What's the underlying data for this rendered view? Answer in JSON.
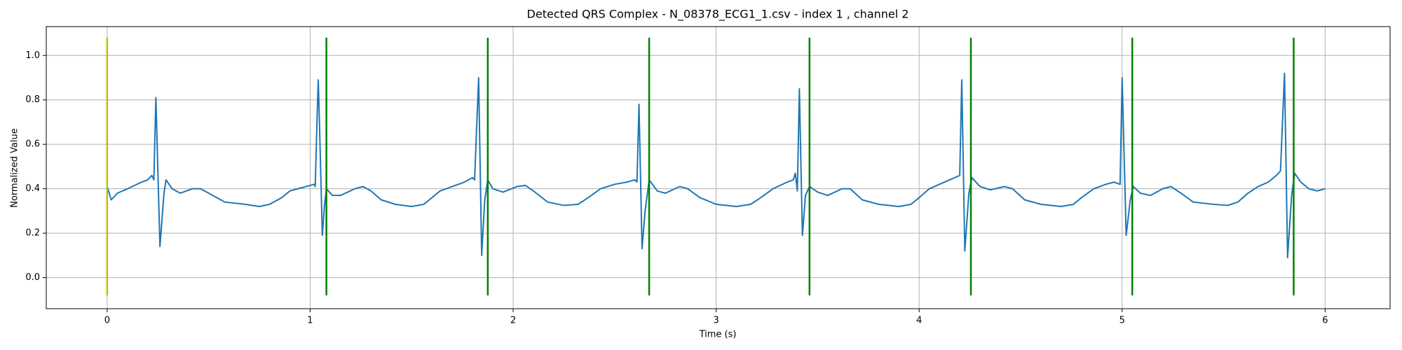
{
  "chart_data": {
    "type": "line",
    "title": "Detected QRS Complex - N_08378_ECG1_1.csv - index 1 , channel 2",
    "xlabel": "Time (s)",
    "ylabel": "Normalized Value",
    "xlim": [
      -0.3,
      6.32
    ],
    "ylim": [
      -0.14,
      1.13
    ],
    "xticks": [
      0,
      1,
      2,
      3,
      4,
      5,
      6
    ],
    "yticks": [
      {
        "value": 0,
        "label": "0.0"
      },
      0.2,
      0.4,
      0.6,
      0.8,
      {
        "value": 1,
        "label": "1.0"
      }
    ],
    "grid": true,
    "series": [
      {
        "color": "#1f77b4",
        "x": [
          0,
          0.02,
          0.05,
          0.1,
          0.17,
          0.2,
          0.22,
          0.23,
          0.24,
          0.26,
          0.28,
          0.29,
          0.32,
          0.36,
          0.42,
          0.46,
          0.52,
          0.58,
          0.68,
          0.75,
          0.8,
          0.86,
          0.9,
          0.94,
          0.98,
          1.02,
          1.025,
          1.035,
          1.04,
          1.05,
          1.06,
          1.07,
          1.08,
          1.11,
          1.15,
          1.22,
          1.26,
          1.3,
          1.35,
          1.42,
          1.5,
          1.56,
          1.6,
          1.64,
          1.7,
          1.76,
          1.8,
          1.81,
          1.83,
          1.845,
          1.86,
          1.875,
          1.9,
          1.95,
          2.02,
          2.06,
          2.1,
          2.17,
          2.25,
          2.32,
          2.37,
          2.43,
          2.5,
          2.56,
          2.6,
          2.61,
          2.62,
          2.635,
          2.65,
          2.67,
          2.71,
          2.75,
          2.82,
          2.86,
          2.92,
          3.0,
          3.1,
          3.17,
          3.22,
          3.28,
          3.35,
          3.38,
          3.39,
          3.4,
          3.41,
          3.425,
          3.44,
          3.46,
          3.5,
          3.55,
          3.62,
          3.66,
          3.72,
          3.8,
          3.9,
          3.96,
          4.0,
          4.05,
          4.1,
          4.15,
          4.2,
          4.21,
          4.225,
          4.245,
          4.26,
          4.3,
          4.35,
          4.42,
          4.46,
          4.52,
          4.6,
          4.7,
          4.76,
          4.8,
          4.86,
          4.92,
          4.96,
          4.99,
          5.0,
          5.02,
          5.04,
          5.055,
          5.09,
          5.14,
          5.2,
          5.24,
          5.29,
          5.35,
          5.45,
          5.52,
          5.57,
          5.62,
          5.67,
          5.72,
          5.76,
          5.78,
          5.8,
          5.815,
          5.835,
          5.85,
          5.88,
          5.92,
          5.96,
          6.0
        ],
        "values": [
          0.41,
          0.35,
          0.38,
          0.4,
          0.43,
          0.44,
          0.46,
          0.44,
          0.81,
          0.14,
          0.38,
          0.44,
          0.4,
          0.38,
          0.4,
          0.4,
          0.37,
          0.34,
          0.33,
          0.32,
          0.33,
          0.36,
          0.39,
          0.4,
          0.41,
          0.42,
          0.41,
          0.75,
          0.89,
          0.55,
          0.19,
          0.32,
          0.4,
          0.37,
          0.37,
          0.4,
          0.41,
          0.39,
          0.35,
          0.33,
          0.32,
          0.33,
          0.36,
          0.39,
          0.41,
          0.43,
          0.45,
          0.44,
          0.9,
          0.1,
          0.35,
          0.44,
          0.4,
          0.385,
          0.41,
          0.415,
          0.39,
          0.34,
          0.325,
          0.33,
          0.36,
          0.4,
          0.42,
          0.43,
          0.44,
          0.43,
          0.78,
          0.13,
          0.3,
          0.44,
          0.39,
          0.38,
          0.41,
          0.4,
          0.36,
          0.33,
          0.32,
          0.33,
          0.36,
          0.4,
          0.43,
          0.44,
          0.47,
          0.39,
          0.85,
          0.19,
          0.37,
          0.41,
          0.385,
          0.37,
          0.4,
          0.4,
          0.35,
          0.33,
          0.32,
          0.33,
          0.36,
          0.4,
          0.42,
          0.44,
          0.46,
          0.89,
          0.12,
          0.38,
          0.45,
          0.41,
          0.395,
          0.41,
          0.4,
          0.35,
          0.33,
          0.32,
          0.33,
          0.36,
          0.4,
          0.42,
          0.43,
          0.42,
          0.9,
          0.19,
          0.35,
          0.41,
          0.38,
          0.37,
          0.4,
          0.41,
          0.38,
          0.34,
          0.33,
          0.325,
          0.34,
          0.38,
          0.41,
          0.43,
          0.46,
          0.48,
          0.92,
          0.09,
          0.37,
          0.47,
          0.43,
          0.4,
          0.39,
          0.4
        ]
      }
    ],
    "vlines": [
      {
        "color": "#bfbf00",
        "x": [
          0
        ]
      },
      {
        "color": "#008000",
        "x": [
          1.08,
          1.875,
          2.67,
          3.46,
          4.255,
          5.05,
          5.845
        ]
      }
    ],
    "vline_span": [
      -0.08,
      1.08
    ]
  }
}
